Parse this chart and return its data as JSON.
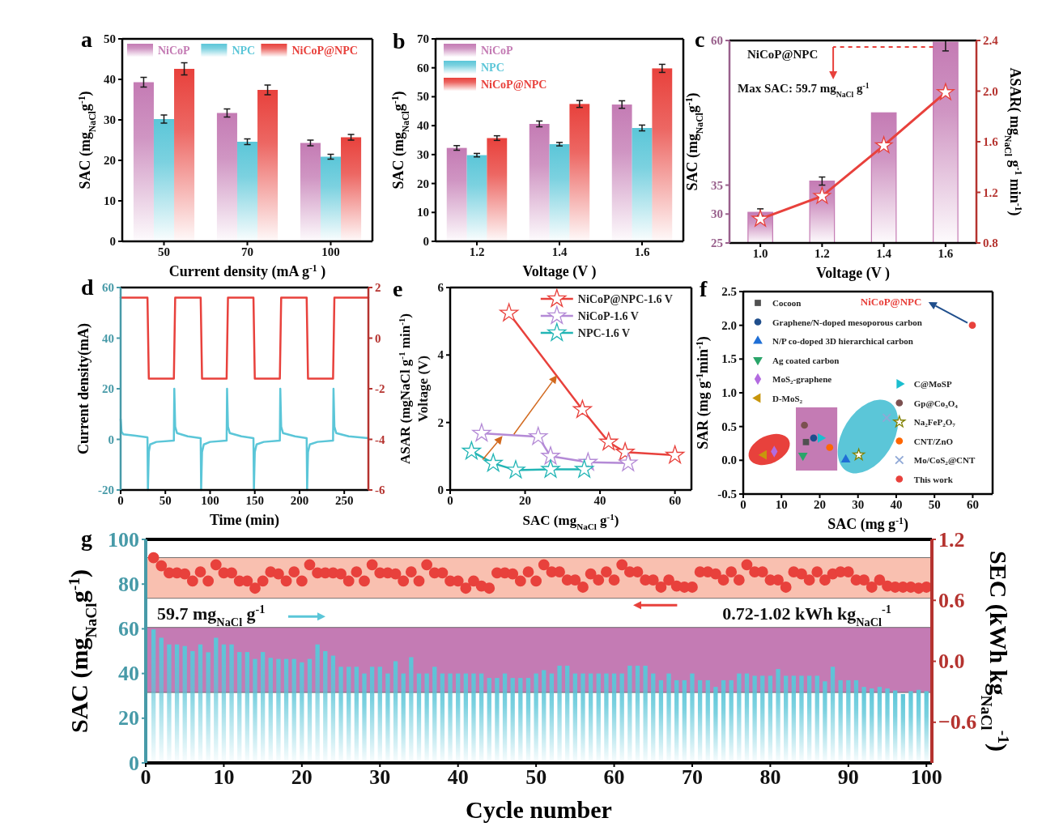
{
  "chart_data": [
    {
      "type": "bar",
      "title": "a",
      "xlabel": "Current density (mA g$^{-1}$ )",
      "ylabel": "SAC (mg$_{NaCl}$g$^{-1}$)",
      "categories": [
        "50",
        "70",
        "100"
      ],
      "ylim": [
        0,
        50
      ],
      "yticks": [
        0,
        10,
        20,
        30,
        40,
        50
      ],
      "legend": "top",
      "series": [
        {
          "name": "NiCoP",
          "color": "#c47bb4",
          "values": [
            39.3,
            31.7,
            24.3
          ],
          "errors": [
            1.2,
            1,
            0.7
          ]
        },
        {
          "name": "NPC",
          "color": "#5bc6d8",
          "values": [
            30.2,
            24.6,
            20.9
          ],
          "errors": [
            1,
            0.7,
            0.6
          ]
        },
        {
          "name": "NiCoP@NPC",
          "color": "#e8413c",
          "values": [
            42.6,
            37.4,
            25.7
          ],
          "errors": [
            1.5,
            1.2,
            0.7
          ]
        }
      ]
    },
    {
      "type": "bar",
      "title": "b",
      "xlabel": "Voltage (V )",
      "ylabel": "SAC (mg$_{NaCl}$g$^{-1}$)",
      "categories": [
        "1.2",
        "1.4",
        "1.6"
      ],
      "ylim": [
        0,
        70
      ],
      "yticks": [
        0,
        10,
        20,
        30,
        40,
        50,
        60,
        70
      ],
      "legend": "top left",
      "series": [
        {
          "name": "NiCoP",
          "color": "#c47bb4",
          "values": [
            32.3,
            40.6,
            47.3
          ],
          "errors": [
            0.8,
            1,
            1.3
          ]
        },
        {
          "name": "NPC",
          "color": "#5bc6d8",
          "values": [
            29.8,
            33.6,
            39.2
          ],
          "errors": [
            0.6,
            0.6,
            1
          ]
        },
        {
          "name": "NiCoP@NPC",
          "color": "#e8413c",
          "values": [
            35.7,
            47.5,
            59.8
          ],
          "errors": [
            0.8,
            1.2,
            1.4
          ]
        }
      ]
    },
    {
      "type": "bar",
      "title": "c",
      "xlabel": "Voltage (V )",
      "ylabel": "SAC (mg$_{NaCl}$g$^{-1}$)",
      "y2label": "ASAR( mg$_{NaCl}$ g$^{-1}$ min$^{-1}$)",
      "categories": [
        "1.0",
        "1.2",
        "1.4",
        "1.6"
      ],
      "ylim": [
        25,
        60
      ],
      "yticks": [
        25,
        30,
        35,
        60
      ],
      "y2lim": [
        0.8,
        2.4
      ],
      "y2ticks": [
        0.8,
        1.2,
        1.6,
        {
          "value": 2,
          "label": "2.0"
        },
        2.4
      ],
      "annotations": [
        "NiCoP@NPC",
        "Max SAC: 59.7 mg$_{NaCl}$ g$^{-1}$"
      ],
      "series": [
        {
          "type": "bar",
          "color": "#c47bb4",
          "values": [
            30.3,
            35.7,
            47.5,
            59.7
          ],
          "errors": [
            0.6,
            0.7,
            null,
            [
              58.2,
              60
            ]
          ]
        },
        {
          "type": "line",
          "axis": "y2",
          "color": "#e8413c",
          "marker": "star",
          "values": [
            0.99,
            1.17,
            1.57,
            1.99
          ]
        }
      ]
    },
    {
      "type": "line",
      "title": "d",
      "xlabel": "Time (min)",
      "ylabel": "Current density(mA)",
      "xlim": [
        0,
        277
      ],
      "xticks": [
        0,
        50,
        100,
        150,
        200,
        250
      ],
      "ylim": [
        -20,
        60
      ],
      "yticks": [
        -20,
        0,
        20,
        40,
        60
      ],
      "y2lim": [
        -6,
        2
      ],
      "y2ticks": [
        -6,
        -4,
        -2,
        0,
        2
      ],
      "series": [
        {
          "color": "#5bc6d8",
          "x": [
            0,
            1,
            3,
            15,
            30,
            30.5,
            31.5,
            33,
            40,
            59.5,
            60,
            61,
            63,
            75,
            89.5,
            90,
            91,
            93,
            100,
            118.5,
            119,
            120,
            122,
            135,
            148.5,
            149,
            150,
            152,
            160,
            178,
            178.5,
            179.5,
            181.5,
            195,
            208,
            208.5,
            209.5,
            211.5,
            220,
            237.5,
            238,
            239,
            241,
            255,
            277
          ],
          "values": [
            8,
            3,
            2,
            1.5,
            0.8,
            -20,
            -5,
            -2,
            -1,
            -0.5,
            20,
            5,
            2.5,
            1.2,
            0.5,
            -20,
            -5,
            -2,
            -1,
            -0.5,
            20,
            5,
            2.5,
            1.2,
            0.5,
            -20,
            -5,
            -2,
            -1,
            -0.5,
            20,
            5,
            2.5,
            1.2,
            0.5,
            -20,
            -5,
            -2,
            -1,
            -0.5,
            20,
            5,
            2.5,
            1.2,
            0.5
          ]
        },
        {
          "color": "#e8413c",
          "axis": "y2",
          "x": [
            0,
            30,
            31.5,
            59.5,
            61,
            89.5,
            91,
            118.5,
            120,
            148.5,
            150,
            178,
            179.5,
            208,
            209.5,
            237.5,
            239,
            277
          ],
          "values": [
            1.6,
            1.6,
            -1.6,
            -1.6,
            1.6,
            1.6,
            -1.6,
            -1.6,
            1.6,
            1.6,
            -1.6,
            -1.6,
            1.6,
            1.6,
            -1.6,
            -1.6,
            1.6,
            1.6
          ]
        }
      ]
    },
    {
      "type": "line",
      "title": "e",
      "xlabel": "SAC (mg$_{NaCl}$ g$^{-1}$)",
      "ylabel": "ASAR (mgNaCl g$^{-1}$ min$^{-1}$)",
      "annotations": [
        "Voltage (V)"
      ],
      "xlim": [
        0,
        64.4
      ],
      "xticks": [
        0,
        20,
        40,
        60
      ],
      "ylim": [
        0,
        6
      ],
      "yticks": [
        0,
        2,
        4,
        6
      ],
      "marker": "star",
      "legend": "top right",
      "series": [
        {
          "name": "NiCoP@NPC-1.6 V",
          "color": "#e8413c",
          "x": [
            15.7,
            35.3,
            42.3,
            46.7,
            60
          ],
          "values": [
            5.24,
            2.38,
            1.42,
            1.12,
            1.03
          ]
        },
        {
          "name": "NiCoP-1.6 V",
          "color": "#b48ad6",
          "x": [
            8.4,
            23.5,
            26.8,
            36.8,
            47.5
          ],
          "values": [
            1.68,
            1.58,
            1.0,
            0.82,
            0.8
          ]
        },
        {
          "name": "NPC-1.6 V",
          "color": "#22b5b5",
          "x": [
            5.7,
            11.5,
            17.5,
            26.8,
            35.8
          ],
          "values": [
            1.15,
            0.79,
            0.59,
            0.61,
            0.61
          ]
        }
      ]
    },
    {
      "type": "scatter",
      "title": "f",
      "xlabel": "SAC (mg g$^{-1}$)",
      "ylabel": "SAR (mg g$^{-1}$min$^{-1}$)",
      "annotations": [
        "NiCoP@NPC"
      ],
      "xlim": [
        0,
        65.2
      ],
      "xticks": [
        0,
        10,
        20,
        30,
        40,
        50,
        60
      ],
      "ylim": [
        -0.5,
        2.5
      ],
      "yticks": [
        -0.5,
        {
          "value": 0,
          "label": "0.0"
        },
        0.5,
        {
          "value": 1,
          "label": "1.0"
        },
        1.5,
        {
          "value": 2,
          "label": "2.0"
        },
        2.5
      ],
      "legend": "top left",
      "series": [
        {
          "name": "Cocoon",
          "color": "#505050",
          "marker": "square",
          "x": [
            16.4
          ],
          "values": [
            0.27
          ]
        },
        {
          "name": "Graphene/N-doped mesoporous carbon",
          "color": "#1f4e8c",
          "marker": "circle",
          "x": [
            18.4
          ],
          "values": [
            0.33
          ]
        },
        {
          "name": "N/P co-doped 3D hierarchical carbon",
          "color": "#1f6fd6",
          "marker": "triangle",
          "x": [
            26.8
          ],
          "values": [
            0.01
          ]
        },
        {
          "name": "Ag coated carbon",
          "color": "#2aa56a",
          "marker": "triangle-down",
          "x": [
            15.6
          ],
          "values": [
            0.07
          ]
        },
        {
          "name": "MoS$_{2}$-graphene",
          "color": "#b36be0",
          "marker": "diamond",
          "x": [
            8.1
          ],
          "values": [
            0.13
          ]
        },
        {
          "name": "D-MoS$_{2}$",
          "color": "#c8960c",
          "marker": "triangle-left",
          "x": [
            5.4
          ],
          "values": [
            0.08
          ]
        },
        {
          "name": "C@MoSP",
          "color": "#1bbecf",
          "marker": "triangle-right",
          "x": [
            20.2
          ],
          "values": [
            0.33
          ]
        },
        {
          "name": "Gp@Co$_{3}$O$_{4}$",
          "color": "#7b5050",
          "marker": "circle",
          "x": [
            16
          ],
          "values": [
            0.52
          ]
        },
        {
          "name": "Na$_{2}$FeP$_{2}$O$_{7}$",
          "color": "#808000",
          "marker": "star",
          "x": [
            30.2
          ],
          "values": [
            0.08
          ]
        },
        {
          "name": "CNT/ZnO",
          "color": "#ff6600",
          "marker": "circle",
          "x": [
            22.6
          ],
          "values": [
            0.19
          ]
        },
        {
          "name": "Mo/CoS$_{2}$@CNT",
          "color": "#8fa8d6",
          "marker": "x",
          "x": [
            37.5
          ],
          "values": [
            0.63
          ]
        },
        {
          "name": "This work",
          "color": "#e8413c",
          "marker": "circle",
          "x": [
            59.9
          ],
          "values": [
            2.0
          ]
        }
      ]
    },
    {
      "type": "bar",
      "title": "g",
      "xlabel": "Cycle number",
      "ylabel": "SAC (mg$_{NaCl}$g$^{-1}$)",
      "y2label": "SEC (kWh kg$_{NaCl}$$^{-1}$)",
      "annotations": [
        "59.7 mg$_{NaCl}$ g$^{-1}$",
        "0.72-1.02 kWh kg$_{NaCl}$$^{-1}$"
      ],
      "xlim": [
        0,
        100.7
      ],
      "xticks": [
        0,
        10,
        20,
        30,
        40,
        50,
        60,
        70,
        80,
        90,
        100
      ],
      "ylim": [
        0,
        100
      ],
      "yticks": [
        0,
        20,
        40,
        60,
        80,
        100
      ],
      "y2lim": [
        -1,
        1.2
      ],
      "y2ticks": [
        {
          "value": -0.6,
          "label": "−0.6"
        },
        {
          "value": 0,
          "label": "0.0"
        },
        0.6,
        1.2
      ],
      "bands": [
        {
          "axis": "y",
          "from": 31.5,
          "to": 60.6,
          "color": "#c47bb4"
        },
        {
          "axis": "y2",
          "from": 0.62,
          "to": 1.02,
          "color": "#f9c0b0"
        }
      ],
      "x": [
        1,
        2,
        3,
        4,
        5,
        6,
        7,
        8,
        9,
        10,
        11,
        12,
        13,
        14,
        15,
        16,
        17,
        18,
        19,
        20,
        21,
        22,
        23,
        24,
        25,
        26,
        27,
        28,
        29,
        30,
        31,
        32,
        33,
        34,
        35,
        36,
        37,
        38,
        39,
        40,
        41,
        42,
        43,
        44,
        45,
        46,
        47,
        48,
        49,
        50,
        51,
        52,
        53,
        54,
        55,
        56,
        57,
        58,
        59,
        60,
        61,
        62,
        63,
        64,
        65,
        66,
        67,
        68,
        69,
        70,
        71,
        72,
        73,
        74,
        75,
        76,
        77,
        78,
        79,
        80,
        81,
        82,
        83,
        84,
        85,
        86,
        87,
        88,
        89,
        90,
        91,
        92,
        93,
        94,
        95,
        96,
        97,
        98,
        99,
        100
      ],
      "series": [
        {
          "type": "bar",
          "color": "#5bc6d8",
          "values": [
            59.7,
            56,
            53,
            53,
            52.3,
            50,
            53,
            49.5,
            56,
            53,
            53,
            49.6,
            49.6,
            46.5,
            49.6,
            47,
            46.5,
            46.5,
            46.5,
            45,
            46.5,
            53,
            50,
            48,
            43,
            43,
            43,
            40,
            43,
            43,
            40,
            45.5,
            40,
            47.3,
            40,
            40,
            43,
            40,
            40,
            40,
            40,
            40,
            40,
            38,
            38,
            40,
            38,
            38,
            38,
            40,
            41.5,
            40,
            43.5,
            43.5,
            40,
            40,
            40,
            40,
            40,
            40,
            40,
            43.5,
            43.5,
            43.5,
            40,
            37,
            40,
            37,
            37,
            40,
            37,
            37,
            34,
            37,
            37,
            40,
            40,
            39,
            39,
            39,
            42,
            39,
            39,
            39,
            39,
            39,
            36.5,
            43,
            37,
            37,
            37,
            34,
            33.3,
            34,
            33.3,
            32.4,
            30.8,
            32.1,
            32.7,
            32.1
          ]
        },
        {
          "type": "scatter",
          "axis": "y2",
          "color": "#e8413c",
          "marker": "circle",
          "values": [
            1.02,
            0.94,
            0.87,
            0.87,
            0.86,
            0.79,
            0.88,
            0.79,
            0.95,
            0.87,
            0.87,
            0.79,
            0.79,
            0.72,
            0.79,
            0.88,
            0.86,
            0.79,
            0.88,
            0.79,
            0.95,
            0.87,
            0.87,
            0.87,
            0.86,
            0.79,
            0.88,
            0.79,
            0.95,
            0.87,
            0.87,
            0.86,
            0.79,
            0.88,
            0.79,
            0.95,
            0.87,
            0.87,
            0.79,
            0.79,
            0.72,
            0.79,
            0.74,
            0.72,
            0.87,
            0.87,
            0.86,
            0.79,
            0.88,
            0.79,
            0.95,
            0.88,
            0.88,
            0.8,
            0.8,
            0.73,
            0.86,
            0.8,
            0.88,
            0.8,
            0.95,
            0.88,
            0.88,
            0.8,
            0.8,
            0.73,
            0.8,
            0.74,
            0.73,
            0.73,
            0.88,
            0.88,
            0.86,
            0.8,
            0.88,
            0.8,
            0.95,
            0.88,
            0.88,
            0.8,
            0.8,
            0.73,
            0.88,
            0.86,
            0.8,
            0.88,
            0.8,
            0.86,
            0.88,
            0.88,
            0.8,
            0.8,
            0.73,
            0.8,
            0.74,
            0.73,
            0.73,
            0.73,
            0.72,
            0.73
          ]
        }
      ]
    }
  ]
}
